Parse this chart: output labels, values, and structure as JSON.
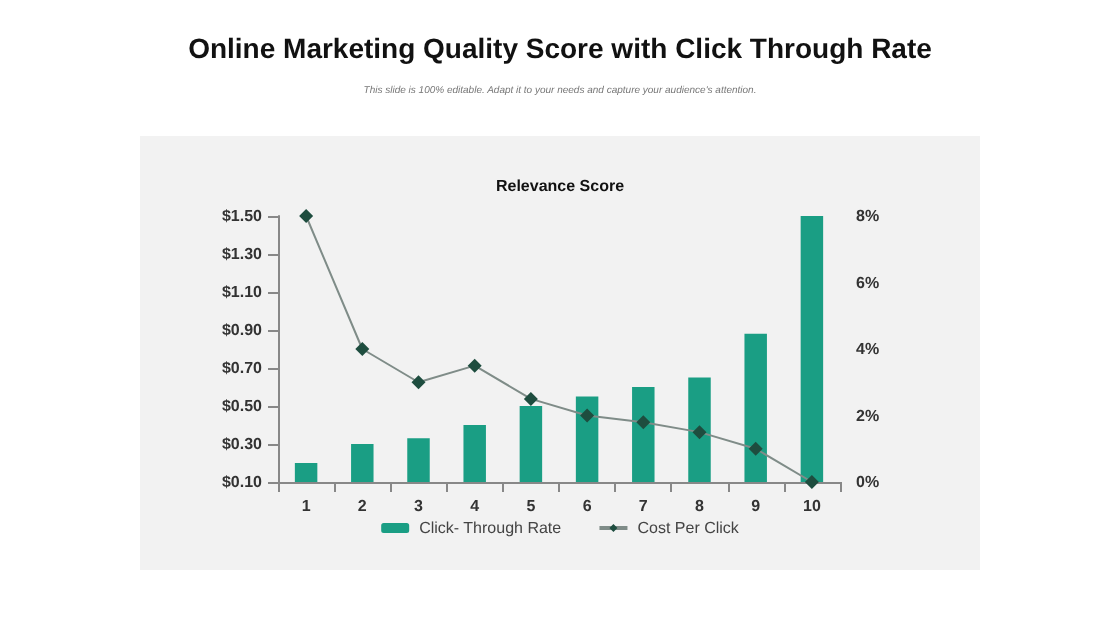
{
  "chart_data": {
    "type": "bar",
    "title": "Online Marketing Quality Score with Click Through Rate",
    "subtitle": "This slide is 100% editable. Adapt it to your needs and capture your audience's attention.",
    "annotations": [
      "Relevance Score"
    ],
    "categories": [
      "1",
      "2",
      "3",
      "4",
      "5",
      "6",
      "7",
      "8",
      "9",
      "10"
    ],
    "series": [
      {
        "name": "Click- Through Rate",
        "color": "#1a9e84",
        "values": [
          0.2,
          0.3,
          0.33,
          0.4,
          0.5,
          0.55,
          0.6,
          0.65,
          0.88,
          1.5
        ]
      },
      {
        "name": "Cost Per Click",
        "type": "line",
        "axis": "y2",
        "color": "#1e4d3f",
        "marker": "diamond",
        "values": [
          8,
          4,
          3,
          3.5,
          2.5,
          2,
          1.8,
          1.5,
          1,
          0
        ]
      }
    ],
    "ylim": [
      0.1,
      1.5
    ],
    "yticks": [
      {
        "value": 0.1,
        "label": "$0.10"
      },
      {
        "value": 0.3,
        "label": "$0.30"
      },
      {
        "value": 0.5,
        "label": "$0.50"
      },
      {
        "value": 0.7,
        "label": "$0.70"
      },
      {
        "value": 0.9,
        "label": "$0.90"
      },
      {
        "value": 1.1,
        "label": "$1.10"
      },
      {
        "value": 1.3,
        "label": "$1.30"
      },
      {
        "value": 1.5,
        "label": "$1.50"
      }
    ],
    "y2lim": [
      0,
      8
    ],
    "y2ticks": [
      {
        "value": 0,
        "label": "0%"
      },
      {
        "value": 2,
        "label": "2%"
      },
      {
        "value": 4,
        "label": "4%"
      },
      {
        "value": 6,
        "label": "6%"
      },
      {
        "value": 8,
        "label": "8%"
      }
    ],
    "grid": false,
    "legend": "bottom"
  }
}
